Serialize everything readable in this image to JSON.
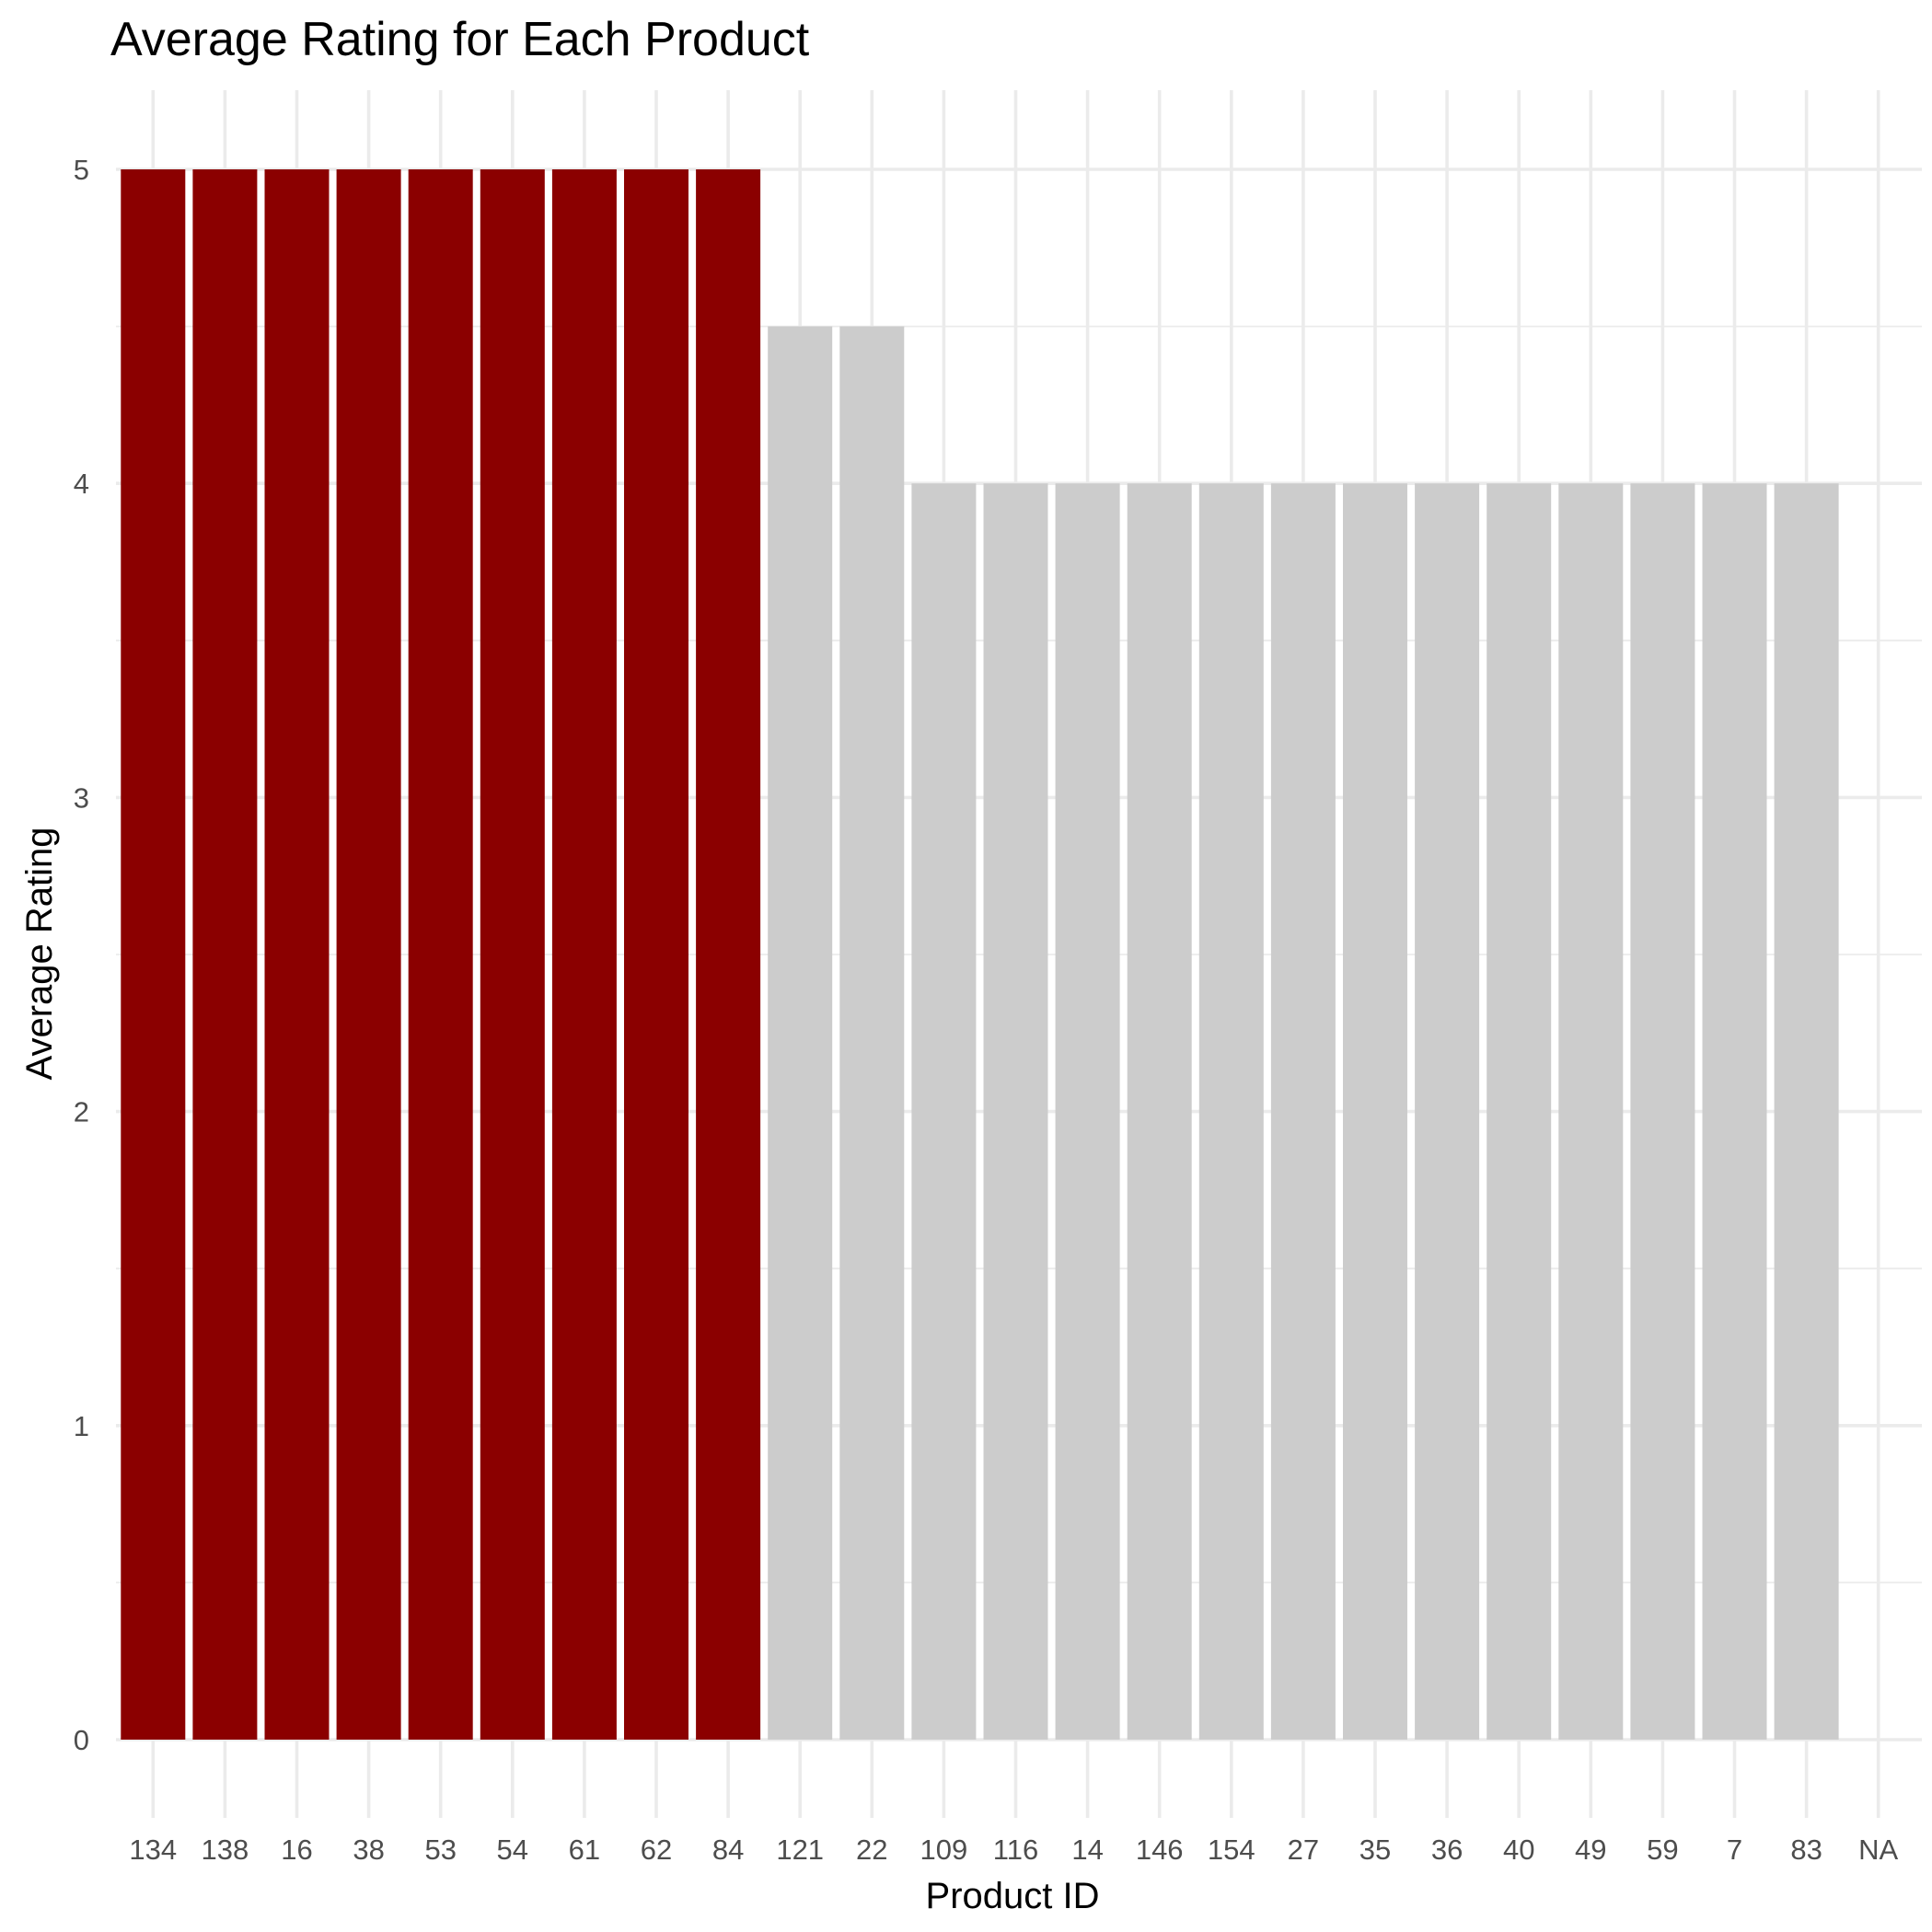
{
  "chart_data": {
    "type": "bar",
    "title": "Average Rating for Each Product",
    "xlabel": "Product ID",
    "ylabel": "Average Rating",
    "ylim": [
      0,
      5
    ],
    "yticks": [
      0,
      1,
      2,
      3,
      4,
      5
    ],
    "y_minor_ticks": [
      0.5,
      1.5,
      2.5,
      3.5,
      4.5
    ],
    "grid": true,
    "legend": "none",
    "colors": {
      "highlight": "#8b0000",
      "default": "#cccccc"
    },
    "categories": [
      "134",
      "138",
      "16",
      "38",
      "53",
      "54",
      "61",
      "62",
      "84",
      "121",
      "22",
      "109",
      "116",
      "14",
      "146",
      "154",
      "27",
      "35",
      "36",
      "40",
      "49",
      "59",
      "7",
      "83",
      "NA"
    ],
    "values": [
      5,
      5,
      5,
      5,
      5,
      5,
      5,
      5,
      5,
      4.5,
      4.5,
      4,
      4,
      4,
      4,
      4,
      4,
      4,
      4,
      4,
      4,
      4,
      4,
      4,
      null
    ],
    "highlighted": [
      true,
      true,
      true,
      true,
      true,
      true,
      true,
      true,
      true,
      false,
      false,
      false,
      false,
      false,
      false,
      false,
      false,
      false,
      false,
      false,
      false,
      false,
      false,
      false,
      false
    ]
  }
}
